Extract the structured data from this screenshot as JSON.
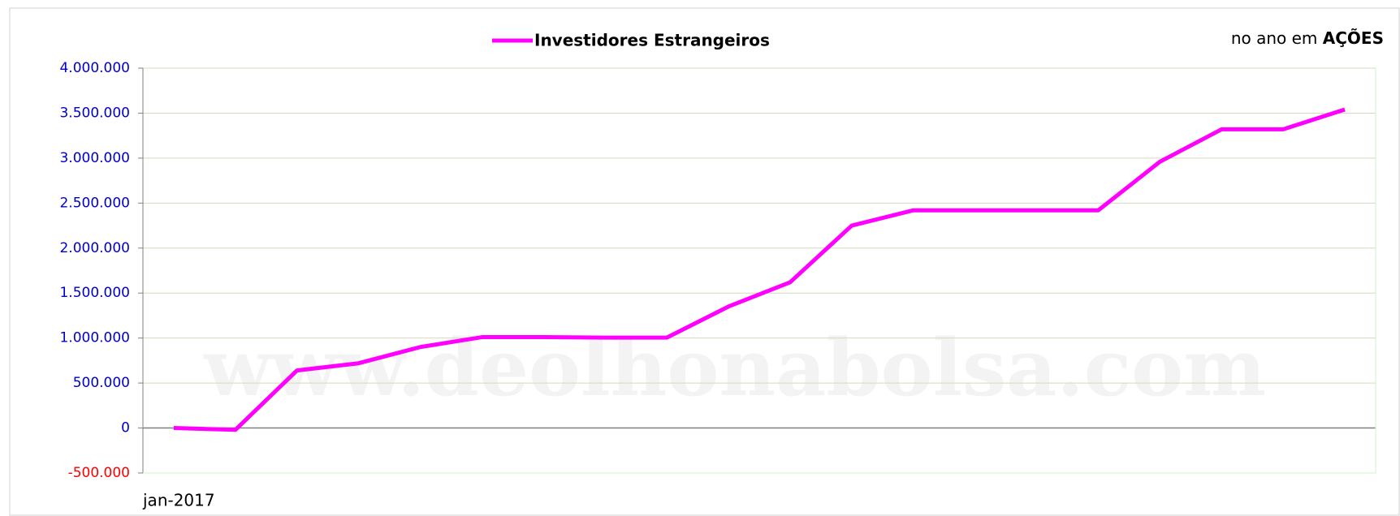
{
  "chart_data": {
    "type": "line",
    "annotation": {
      "text": "no ano em",
      "emphasis": "AÇÕES"
    },
    "watermark": "www.deolhonabolsa.com",
    "categories": [
      "jan-2017",
      null,
      null,
      null,
      null,
      null,
      null,
      null,
      null,
      null,
      null,
      null,
      null,
      null,
      null,
      null,
      null,
      null,
      null,
      null
    ],
    "series": [
      {
        "name": "Investidores Estrangeiros",
        "color": "#ff00ff",
        "values": [
          0,
          -20000,
          640000,
          720000,
          900000,
          1010000,
          1010000,
          1005000,
          1005000,
          1350000,
          1620000,
          2250000,
          2420000,
          2420000,
          2420000,
          2420000,
          2960000,
          3320000,
          3320000,
          3540000
        ]
      }
    ],
    "ylim": [
      -500000,
      4000000
    ],
    "yticks": [
      {
        "value": -500000,
        "label": "-500.000"
      },
      0,
      {
        "value": 500000,
        "label": "500.000"
      },
      {
        "value": 1000000,
        "label": "1.000.000"
      },
      {
        "value": 1500000,
        "label": "1.500.000"
      },
      {
        "value": 2000000,
        "label": "2.000.000"
      },
      {
        "value": 2500000,
        "label": "2.500.000"
      },
      {
        "value": 3000000,
        "label": "3.000.000"
      },
      {
        "value": 3500000,
        "label": "3.500.000"
      },
      {
        "value": 4000000,
        "label": "4.000.000"
      }
    ],
    "grid": true,
    "tick_color": "#0000cc",
    "negative_tick_color": "#ff0000"
  }
}
